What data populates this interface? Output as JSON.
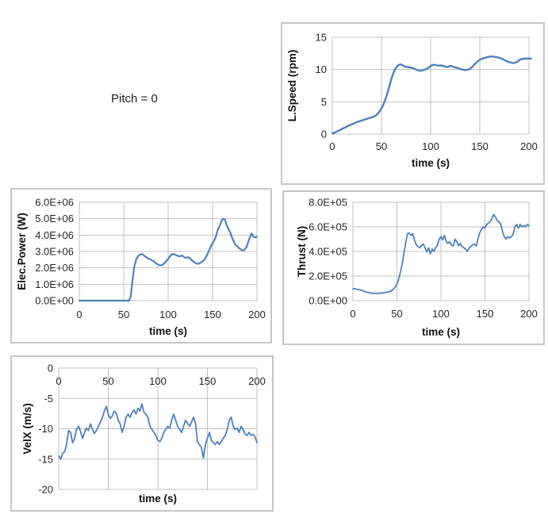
{
  "annotation": {
    "text": "Pitch = 0"
  },
  "colors": {
    "line": "#4f81bd",
    "grid": "#c2c2c2",
    "panel_border": "#c6c6c6",
    "tick_text": "#262626"
  },
  "chart_data": [
    {
      "id": "lspeed",
      "type": "line",
      "title": "",
      "xlabel": "time (s)",
      "ylabel": "L.Speed (rpm)",
      "xlim": [
        0,
        200
      ],
      "ylim": [
        0,
        15
      ],
      "grid": true,
      "legend": "none",
      "xticks": [
        0,
        50,
        100,
        150,
        200
      ],
      "xtick_labels": [
        "0",
        "50",
        "100",
        "150",
        "200"
      ],
      "yticks": [
        0,
        5,
        10,
        15
      ],
      "ytick_labels": [
        "0",
        "5",
        "10",
        "15"
      ],
      "x_start": 0,
      "x_step": 2,
      "values": [
        0.1,
        0.2,
        0.35,
        0.5,
        0.65,
        0.8,
        0.95,
        1.1,
        1.25,
        1.4,
        1.5,
        1.65,
        1.8,
        1.9,
        2.0,
        2.1,
        2.2,
        2.3,
        2.4,
        2.5,
        2.6,
        2.7,
        2.85,
        3.1,
        3.5,
        4.0,
        4.6,
        5.4,
        6.3,
        7.4,
        8.5,
        9.4,
        10.1,
        10.5,
        10.75,
        10.8,
        10.6,
        10.45,
        10.4,
        10.35,
        10.3,
        10.2,
        10.1,
        9.95,
        9.85,
        9.8,
        9.9,
        10.0,
        10.1,
        10.3,
        10.55,
        10.7,
        10.75,
        10.65,
        10.6,
        10.65,
        10.6,
        10.5,
        10.4,
        10.45,
        10.55,
        10.5,
        10.35,
        10.3,
        10.2,
        10.1,
        10.0,
        9.95,
        9.9,
        10.0,
        10.1,
        10.35,
        10.7,
        11.0,
        11.3,
        11.5,
        11.65,
        11.75,
        11.85,
        11.95,
        12.0,
        12.05,
        12.0,
        11.95,
        11.9,
        11.8,
        11.7,
        11.55,
        11.4,
        11.25,
        11.15,
        11.05,
        11.0,
        11.05,
        11.2,
        11.45,
        11.6,
        11.65,
        11.7,
        11.7,
        11.7,
        11.7
      ]
    },
    {
      "id": "epower",
      "type": "line",
      "title": "",
      "xlabel": "time (s)",
      "ylabel": "Elec.Power (W)",
      "xlim": [
        0,
        200
      ],
      "ylim": [
        0,
        6000000
      ],
      "grid": true,
      "legend": "none",
      "xticks": [
        0,
        50,
        100,
        150,
        200
      ],
      "xtick_labels": [
        "0",
        "50",
        "100",
        "150",
        "200"
      ],
      "yticks": [
        0,
        1000000,
        2000000,
        3000000,
        4000000,
        5000000,
        6000000
      ],
      "ytick_labels": [
        "0.0E+00",
        "1.0E+06",
        "2.0E+06",
        "3.0E+06",
        "4.0E+06",
        "5.0E+06",
        "6.0E+06"
      ],
      "x_start": 0,
      "x_step": 2,
      "values": [
        0,
        0,
        0,
        0,
        0,
        0,
        0,
        0,
        0,
        0,
        0,
        0,
        0,
        0,
        0,
        0,
        0,
        0,
        0,
        0,
        0,
        0,
        0,
        0,
        0,
        0,
        0,
        0,
        0,
        300000,
        1300000,
        2100000,
        2500000,
        2700000,
        2800000,
        2850000,
        2800000,
        2700000,
        2620000,
        2560000,
        2520000,
        2450000,
        2400000,
        2300000,
        2220000,
        2170000,
        2150000,
        2200000,
        2300000,
        2420000,
        2550000,
        2700000,
        2820000,
        2850000,
        2800000,
        2760000,
        2700000,
        2720000,
        2750000,
        2650000,
        2600000,
        2650000,
        2620000,
        2500000,
        2400000,
        2320000,
        2260000,
        2250000,
        2300000,
        2380000,
        2450000,
        2600000,
        2800000,
        3050000,
        3300000,
        3500000,
        3680000,
        3950000,
        4350000,
        4550000,
        4850000,
        5000000,
        4950000,
        4600000,
        4350000,
        4150000,
        3850000,
        3600000,
        3400000,
        3300000,
        3200000,
        3120000,
        3050000,
        3100000,
        3250000,
        3550000,
        3850000,
        4100000,
        3900000,
        3850000,
        3900000
      ]
    },
    {
      "id": "thrust",
      "type": "line",
      "title": "",
      "xlabel": "time (s)",
      "ylabel": "Thrust (N)",
      "xlim": [
        0,
        200
      ],
      "ylim": [
        0,
        800000
      ],
      "grid": true,
      "legend": "none",
      "xticks": [
        0,
        50,
        100,
        150,
        200
      ],
      "xtick_labels": [
        "0",
        "50",
        "100",
        "150",
        "200"
      ],
      "yticks": [
        0,
        200000,
        400000,
        600000,
        800000
      ],
      "ytick_labels": [
        "0.0E+00",
        "2.0E+05",
        "4.0E+05",
        "6.0E+05",
        "8.0E+05"
      ],
      "x_start": 0,
      "x_step": 2,
      "values": [
        95000,
        98000,
        92000,
        90000,
        88000,
        85000,
        78000,
        72000,
        70000,
        65000,
        63000,
        60000,
        62000,
        58000,
        60000,
        62000,
        60000,
        63000,
        65000,
        68000,
        70000,
        75000,
        82000,
        95000,
        110000,
        135000,
        175000,
        230000,
        300000,
        390000,
        470000,
        545000,
        550000,
        530000,
        545000,
        490000,
        455000,
        440000,
        430000,
        450000,
        460000,
        430000,
        395000,
        430000,
        380000,
        420000,
        400000,
        430000,
        450000,
        500000,
        520000,
        495000,
        530000,
        480000,
        465000,
        480000,
        450000,
        445000,
        500000,
        480000,
        445000,
        465000,
        440000,
        430000,
        420000,
        400000,
        430000,
        440000,
        455000,
        460000,
        445000,
        500000,
        550000,
        580000,
        600000,
        590000,
        620000,
        630000,
        645000,
        670000,
        700000,
        680000,
        650000,
        640000,
        620000,
        560000,
        520000,
        500000,
        520000,
        510000,
        520000,
        540000,
        600000,
        620000,
        590000,
        620000,
        600000,
        610000,
        600000,
        620000,
        610000
      ]
    },
    {
      "id": "velx",
      "type": "line",
      "title": "",
      "xlabel": "time (s)",
      "ylabel": "VelX (m/s)",
      "xlim": [
        0,
        200
      ],
      "ylim": [
        -20,
        0
      ],
      "grid": true,
      "legend": "none",
      "xticks": [
        0,
        50,
        100,
        150,
        200
      ],
      "xtick_labels": [
        "0",
        "50",
        "100",
        "150",
        "200"
      ],
      "yticks": [
        -20,
        -15,
        -10,
        -5,
        0
      ],
      "ytick_labels": [
        "-20",
        "-15",
        "-10",
        "-5",
        "0"
      ],
      "x_start": 0,
      "x_step": 2,
      "values": [
        -14.5,
        -15.0,
        -14.0,
        -13.8,
        -12.5,
        -10.3,
        -10.6,
        -12.3,
        -11.6,
        -10.1,
        -9.6,
        -10.4,
        -11.6,
        -10.6,
        -9.9,
        -10.3,
        -9.2,
        -10.1,
        -10.8,
        -10.3,
        -9.6,
        -8.9,
        -8.2,
        -7.1,
        -6.3,
        -7.6,
        -8.3,
        -7.9,
        -7.1,
        -7.4,
        -8.6,
        -9.2,
        -10.6,
        -9.6,
        -8.1,
        -7.6,
        -8.1,
        -7.3,
        -6.9,
        -7.6,
        -6.6,
        -7.1,
        -5.9,
        -7.3,
        -7.6,
        -8.1,
        -9.6,
        -10.1,
        -10.6,
        -11.1,
        -11.9,
        -12.1,
        -11.6,
        -10.6,
        -10.1,
        -9.6,
        -9.9,
        -8.6,
        -7.6,
        -8.6,
        -9.6,
        -10.1,
        -10.6,
        -9.6,
        -8.6,
        -9.1,
        -9.6,
        -8.9,
        -8.1,
        -9.1,
        -12.1,
        -12.6,
        -13.1,
        -14.8,
        -12.6,
        -11.6,
        -10.6,
        -11.9,
        -12.3,
        -12.6,
        -12.1,
        -12.6,
        -12.1,
        -11.6,
        -11.1,
        -10.1,
        -8.6,
        -8.1,
        -9.6,
        -10.1,
        -9.9,
        -10.6,
        -9.6,
        -10.1,
        -10.9,
        -11.1,
        -10.6,
        -11.1,
        -10.9,
        -11.3,
        -12.3
      ]
    }
  ]
}
